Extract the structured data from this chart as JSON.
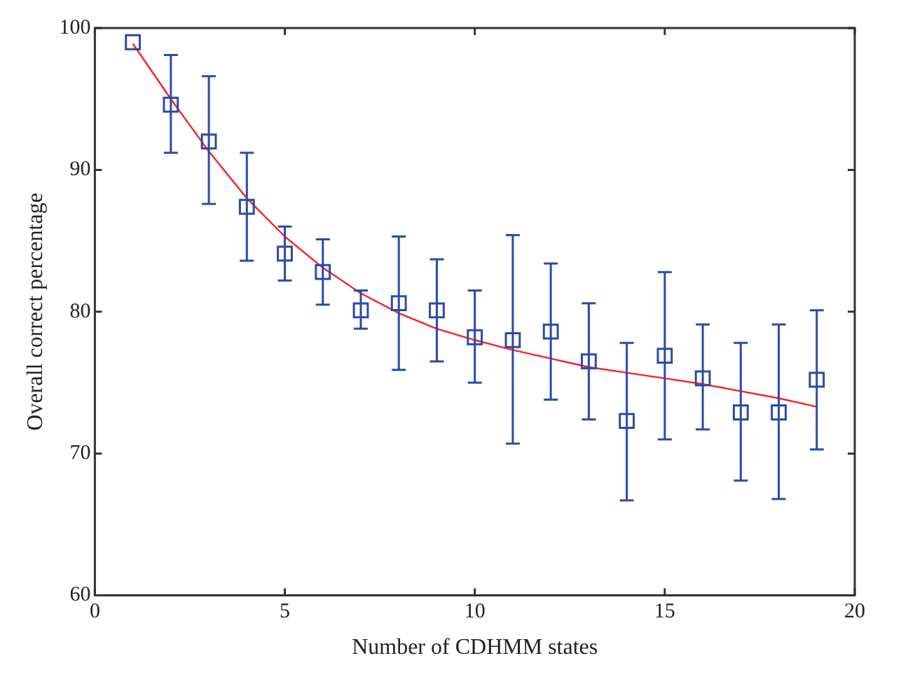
{
  "chart_data": {
    "type": "scatter",
    "xlabel": "Number of CDHMM states",
    "ylabel": "Overall correct percentage",
    "xlim": [
      0,
      20
    ],
    "xticks": [
      0,
      5,
      10,
      15,
      20
    ],
    "ylim": [
      60,
      100
    ],
    "yticks": [
      60,
      70,
      80,
      90,
      100
    ],
    "grid": false,
    "legend": false,
    "series": [
      {
        "type": "scatter",
        "color": "#2b4ba8",
        "marker": "square",
        "x": [
          1,
          2,
          3,
          4,
          5,
          6,
          7,
          8,
          9,
          10,
          11,
          12,
          13,
          14,
          15,
          16,
          17,
          18,
          19
        ],
        "values": [
          99.0,
          94.6,
          92.0,
          87.4,
          84.1,
          82.8,
          80.1,
          80.6,
          80.1,
          78.2,
          78.0,
          78.6,
          76.5,
          72.3,
          76.9,
          75.3,
          72.9,
          72.9,
          75.2
        ],
        "errors": [
          null,
          [
            91.2,
            98.1
          ],
          [
            87.6,
            96.6
          ],
          [
            83.6,
            91.2
          ],
          [
            82.2,
            86.0
          ],
          [
            80.5,
            85.1
          ],
          [
            78.8,
            81.5
          ],
          [
            75.9,
            85.3
          ],
          [
            76.5,
            83.7
          ],
          [
            75.0,
            81.5
          ],
          [
            70.7,
            85.4
          ],
          [
            73.8,
            83.4
          ],
          [
            72.4,
            80.6
          ],
          [
            66.7,
            77.8
          ],
          [
            71.0,
            82.8
          ],
          [
            71.7,
            79.1
          ],
          [
            68.1,
            77.8
          ],
          [
            66.8,
            79.1
          ],
          [
            70.3,
            80.1
          ]
        ]
      },
      {
        "type": "line",
        "color": "#ff2020",
        "marker": "none",
        "line_style": "solid",
        "x": [
          1,
          2,
          3,
          4,
          5,
          6,
          7,
          8,
          9,
          10,
          11,
          12,
          13,
          14,
          15,
          16,
          17,
          18,
          19
        ],
        "values": [
          98.9,
          95.0,
          91.3,
          88.0,
          85.3,
          83.1,
          81.3,
          79.9,
          78.8,
          78.0,
          77.3,
          76.7,
          76.1,
          75.7,
          75.3,
          74.9,
          74.4,
          73.9,
          73.3
        ]
      }
    ]
  }
}
